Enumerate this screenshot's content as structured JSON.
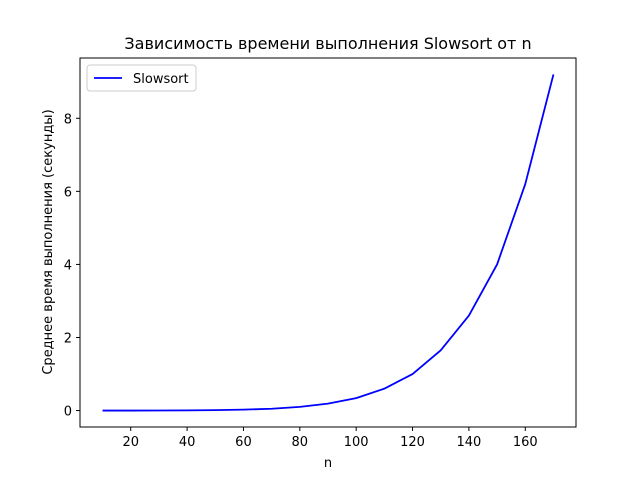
{
  "chart_data": {
    "type": "line",
    "title": "Зависимость времени выполнения Slowsort от n",
    "xlabel": "n",
    "ylabel": "Среднее время выполнения (секунды)",
    "xlim": [
      2,
      178
    ],
    "ylim": [
      -0.45,
      9.65
    ],
    "x_ticks": [
      20,
      40,
      60,
      80,
      100,
      120,
      140,
      160
    ],
    "y_ticks": [
      0,
      2,
      4,
      6,
      8
    ],
    "grid": false,
    "legend_position": "top-left",
    "series": [
      {
        "name": "Slowsort",
        "color": "#0000ff",
        "x": [
          10,
          20,
          30,
          40,
          50,
          60,
          70,
          80,
          90,
          100,
          110,
          120,
          130,
          140,
          150,
          160,
          170
        ],
        "y": [
          0.0,
          0.0,
          0.002,
          0.005,
          0.012,
          0.025,
          0.05,
          0.1,
          0.19,
          0.34,
          0.6,
          1.0,
          1.65,
          2.6,
          4.0,
          6.2,
          9.2
        ]
      }
    ]
  }
}
